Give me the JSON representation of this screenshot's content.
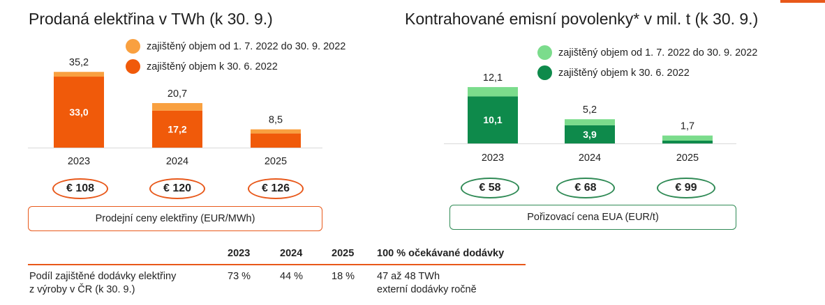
{
  "colors": {
    "accent": "#e8581a",
    "orange_dark": "#f05a0a",
    "orange_light": "#f9a040",
    "green_dark": "#0e8a4b",
    "green_light": "#7bdc8c",
    "axis": "#d9d9d9",
    "oval_orange": "#e8581a",
    "oval_green": "#2f8a55"
  },
  "chart_data": [
    {
      "type": "bar",
      "stacked": true,
      "title": "Prodaná elektřina v TWh (k 30. 9.)",
      "categories": [
        "2023",
        "2024",
        "2025"
      ],
      "series": [
        {
          "name": "zajištěný objem k 30. 6. 2022",
          "values": [
            33.0,
            17.2,
            6.6
          ],
          "labels": [
            "33,0",
            "17,2",
            ""
          ]
        },
        {
          "name": "zajištěný objem od 1. 7. 2022 do 30. 9. 2022",
          "values": [
            2.2,
            3.5,
            1.9
          ]
        }
      ],
      "totals": [
        35.2,
        20.7,
        8.5
      ],
      "total_labels": [
        "35,2",
        "20,7",
        "8,5"
      ],
      "legend": [
        "zajištěný objem od 1. 7. 2022 do 30. 9. 2022",
        "zajištěný objem k 30. 6. 2022"
      ],
      "ylim": [
        0,
        40
      ],
      "prices": [
        "€ 108",
        "€ 120",
        "€ 126"
      ],
      "price_caption": "Prodejní ceny elektřiny (EUR/MWh)"
    },
    {
      "type": "bar",
      "stacked": true,
      "title": "Kontrahované emisní povolenky* v mil. t (k 30. 9.)",
      "categories": [
        "2023",
        "2024",
        "2025"
      ],
      "series": [
        {
          "name": "zajištěný objem k 30. 6. 2022",
          "values": [
            10.1,
            3.9,
            0.6
          ],
          "labels": [
            "10,1",
            "3,9",
            ""
          ]
        },
        {
          "name": "zajištěný objem od 1. 7. 2022 do 30. 9. 2022",
          "values": [
            2.0,
            1.3,
            1.1
          ]
        }
      ],
      "totals": [
        12.1,
        5.2,
        1.7
      ],
      "total_labels": [
        "12,1",
        "5,2",
        "1,7"
      ],
      "legend": [
        "zajištěný objem od 1. 7. 2022 do 30. 9. 2022",
        "zajištěný objem k 30. 6. 2022"
      ],
      "ylim": [
        0,
        15
      ],
      "prices": [
        "€ 58",
        "€ 68",
        "€ 99"
      ],
      "price_caption": "Pořizovací cena EUA (EUR/t)"
    }
  ],
  "table": {
    "headers": [
      "2023",
      "2024",
      "2025",
      "100 % očekávané dodávky"
    ],
    "row_label_line1": "Podíl zajištěné dodávky elektřiny",
    "row_label_line2": "z výroby v ČR (k 30. 9.)",
    "values": [
      "73 %",
      "44 %",
      "18 %"
    ],
    "expected_line1": "47 až 48 TWh",
    "expected_line2": "externí dodávky ročně"
  }
}
